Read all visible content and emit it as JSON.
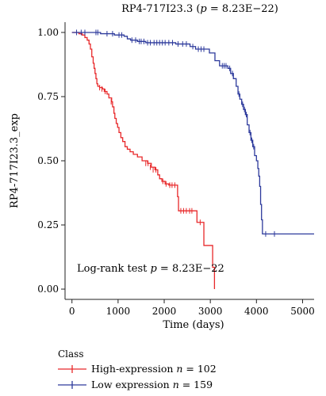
{
  "chart_data": {
    "type": "line",
    "subtype": "kaplan-meier",
    "title_prefix": "RP4-717I23.3 (",
    "title_p_symbol": "p",
    "title_suffix": " = 8.23E−22)",
    "xlabel": "Time (days)",
    "ylabel": "RP4-717I23.3_exp",
    "xlim": [
      -150,
      5250
    ],
    "ylim": [
      -0.04,
      1.04
    ],
    "x_ticks": [
      0,
      1000,
      2000,
      3000,
      4000,
      5000
    ],
    "y_ticks": [
      0.0,
      0.25,
      0.5,
      0.75,
      1.0
    ],
    "y_tick_labels": [
      "0.00",
      "0.25",
      "0.50",
      "0.75",
      "1.00"
    ],
    "grid": false,
    "legend_placement": "bottom",
    "annotation": {
      "prefix": "Log-rank test ",
      "p_symbol": "p",
      "suffix": " = 8.23E−22"
    },
    "legend": {
      "title": "Class",
      "n_symbol": "n",
      "entries": [
        {
          "label": "High-expression ",
          "n_text": " = 102",
          "color": "#e8282a"
        },
        {
          "label": "Low expression ",
          "n_text": " = 159",
          "color": "#2d3a9c"
        }
      ]
    },
    "series": [
      {
        "color": "#e8282a",
        "steps": [
          [
            0,
            1.0
          ],
          [
            150,
            0.995
          ],
          [
            220,
            0.99
          ],
          [
            280,
            0.98
          ],
          [
            330,
            0.97
          ],
          [
            370,
            0.955
          ],
          [
            400,
            0.935
          ],
          [
            430,
            0.905
          ],
          [
            460,
            0.88
          ],
          [
            480,
            0.86
          ],
          [
            500,
            0.84
          ],
          [
            520,
            0.82
          ],
          [
            540,
            0.8
          ],
          [
            560,
            0.79
          ],
          [
            600,
            0.785
          ],
          [
            660,
            0.78
          ],
          [
            700,
            0.77
          ],
          [
            760,
            0.76
          ],
          [
            800,
            0.745
          ],
          [
            860,
            0.73
          ],
          [
            880,
            0.71
          ],
          [
            910,
            0.685
          ],
          [
            930,
            0.665
          ],
          [
            960,
            0.645
          ],
          [
            990,
            0.63
          ],
          [
            1020,
            0.61
          ],
          [
            1060,
            0.59
          ],
          [
            1100,
            0.575
          ],
          [
            1150,
            0.555
          ],
          [
            1200,
            0.545
          ],
          [
            1260,
            0.535
          ],
          [
            1330,
            0.525
          ],
          [
            1420,
            0.515
          ],
          [
            1520,
            0.5
          ],
          [
            1640,
            0.49
          ],
          [
            1720,
            0.475
          ],
          [
            1800,
            0.465
          ],
          [
            1860,
            0.445
          ],
          [
            1900,
            0.43
          ],
          [
            1950,
            0.42
          ],
          [
            2020,
            0.41
          ],
          [
            2100,
            0.405
          ],
          [
            2290,
            0.36
          ],
          [
            2310,
            0.305
          ],
          [
            2710,
            0.26
          ],
          [
            2860,
            0.17
          ],
          [
            3050,
            0.085
          ],
          [
            3090,
            0.0
          ]
        ],
        "censored": [
          [
            600,
            0.785
          ],
          [
            650,
            0.78
          ],
          [
            720,
            0.77
          ],
          [
            850,
            0.73
          ],
          [
            1600,
            0.49
          ],
          [
            1650,
            0.49
          ],
          [
            1700,
            0.475
          ],
          [
            1760,
            0.465
          ],
          [
            1820,
            0.465
          ],
          [
            1970,
            0.42
          ],
          [
            2040,
            0.41
          ],
          [
            2120,
            0.405
          ],
          [
            2170,
            0.405
          ],
          [
            2230,
            0.405
          ],
          [
            2360,
            0.305
          ],
          [
            2420,
            0.305
          ],
          [
            2480,
            0.305
          ],
          [
            2550,
            0.305
          ],
          [
            2600,
            0.305
          ],
          [
            2780,
            0.26
          ]
        ]
      },
      {
        "color": "#2d3a9c",
        "steps": [
          [
            0,
            1.0
          ],
          [
            620,
            0.995
          ],
          [
            920,
            0.99
          ],
          [
            1130,
            0.985
          ],
          [
            1200,
            0.975
          ],
          [
            1270,
            0.97
          ],
          [
            1420,
            0.965
          ],
          [
            1600,
            0.96
          ],
          [
            2250,
            0.955
          ],
          [
            2560,
            0.945
          ],
          [
            2680,
            0.935
          ],
          [
            2980,
            0.92
          ],
          [
            3100,
            0.89
          ],
          [
            3200,
            0.87
          ],
          [
            3380,
            0.86
          ],
          [
            3440,
            0.84
          ],
          [
            3500,
            0.82
          ],
          [
            3560,
            0.79
          ],
          [
            3600,
            0.76
          ],
          [
            3640,
            0.74
          ],
          [
            3680,
            0.72
          ],
          [
            3720,
            0.7
          ],
          [
            3760,
            0.68
          ],
          [
            3800,
            0.64
          ],
          [
            3840,
            0.61
          ],
          [
            3880,
            0.58
          ],
          [
            3920,
            0.555
          ],
          [
            3960,
            0.52
          ],
          [
            4000,
            0.5
          ],
          [
            4030,
            0.47
          ],
          [
            4050,
            0.44
          ],
          [
            4070,
            0.4
          ],
          [
            4090,
            0.33
          ],
          [
            4110,
            0.27
          ],
          [
            4130,
            0.215
          ]
        ],
        "censored": [
          [
            100,
            1.0
          ],
          [
            200,
            1.0
          ],
          [
            280,
            1.0
          ],
          [
            520,
            1.0
          ],
          [
            560,
            1.0
          ],
          [
            760,
            0.995
          ],
          [
            880,
            0.995
          ],
          [
            1020,
            0.99
          ],
          [
            1080,
            0.99
          ],
          [
            1300,
            0.97
          ],
          [
            1380,
            0.97
          ],
          [
            1460,
            0.965
          ],
          [
            1500,
            0.965
          ],
          [
            1560,
            0.965
          ],
          [
            1640,
            0.96
          ],
          [
            1700,
            0.96
          ],
          [
            1780,
            0.96
          ],
          [
            1840,
            0.96
          ],
          [
            1900,
            0.96
          ],
          [
            1960,
            0.96
          ],
          [
            2020,
            0.96
          ],
          [
            2100,
            0.96
          ],
          [
            2180,
            0.96
          ],
          [
            2300,
            0.955
          ],
          [
            2400,
            0.955
          ],
          [
            2480,
            0.955
          ],
          [
            2620,
            0.945
          ],
          [
            2740,
            0.935
          ],
          [
            2800,
            0.935
          ],
          [
            2860,
            0.935
          ],
          [
            3260,
            0.87
          ],
          [
            3300,
            0.87
          ],
          [
            3340,
            0.87
          ],
          [
            3420,
            0.86
          ],
          [
            3480,
            0.84
          ],
          [
            3620,
            0.76
          ],
          [
            3700,
            0.72
          ],
          [
            3740,
            0.7
          ],
          [
            3780,
            0.68
          ],
          [
            3860,
            0.61
          ],
          [
            3900,
            0.58
          ],
          [
            3940,
            0.555
          ],
          [
            4200,
            0.215
          ],
          [
            4390,
            0.215
          ]
        ]
      }
    ]
  }
}
